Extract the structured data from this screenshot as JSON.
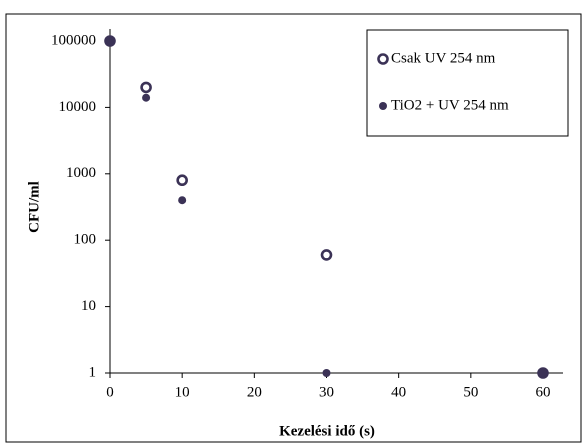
{
  "chart_data": {
    "type": "scatter",
    "x_label": "Kezelési idő (s)",
    "y_label": "CFU/ml",
    "x": [
      0,
      5,
      10,
      30,
      60
    ],
    "series": [
      {
        "name": "Csak UV 254 nm",
        "color": "#3b3256",
        "marker": "open",
        "values": [
          100000,
          20000,
          800,
          60,
          1
        ]
      },
      {
        "name": "TiO2 + UV 254 nm",
        "color": "#3b3256",
        "marker": "filled",
        "values": [
          100000,
          14000,
          400,
          1,
          1
        ]
      }
    ],
    "xlim": [
      0,
      60
    ],
    "xticks": [
      0,
      10,
      20,
      30,
      40,
      50,
      60
    ],
    "ylim": [
      1,
      100000
    ],
    "yticks": [
      1,
      10,
      100,
      1000,
      10000,
      100000
    ],
    "y_scale": "log",
    "legend": "upper right"
  }
}
